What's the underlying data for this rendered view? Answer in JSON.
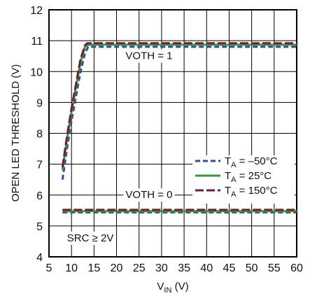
{
  "chart_data": {
    "type": "line",
    "xlabel": "V",
    "xlabel_sub": "IN",
    "xlabel_unit": " (V)",
    "ylabel": "OPEN LED THRESHOLD (V)",
    "xlim": [
      5,
      60
    ],
    "ylim": [
      4,
      12
    ],
    "xticks": [
      5,
      10,
      15,
      20,
      25,
      30,
      35,
      40,
      45,
      50,
      55,
      60
    ],
    "yticks": [
      4,
      5,
      6,
      7,
      8,
      9,
      10,
      11,
      12
    ],
    "grid": true,
    "legend_position": "right-middle",
    "annotations": [
      {
        "text": "VOTH = 1",
        "x": 22,
        "y": 10.4
      },
      {
        "text": "VOTH = 0",
        "x": 22,
        "y": 5.9
      },
      {
        "text": "SRC ≥ 2V",
        "x": 9,
        "y": 4.5
      }
    ],
    "series": [
      {
        "name": "T",
        "name_sub": "A",
        "name_rest": " = –50°C",
        "color": "#2b4f9e",
        "dash": "7,4",
        "curves": [
          {
            "x": [
              8,
              9,
              10,
              11,
              12,
              13,
              13.7,
              15,
              60
            ],
            "y": [
              6.5,
              7.5,
              8.4,
              9.2,
              10.0,
              10.6,
              10.8,
              10.8,
              10.8
            ]
          },
          {
            "x": [
              8,
              60
            ],
            "y": [
              5.44,
              5.44
            ]
          }
        ]
      },
      {
        "name": "T",
        "name_sub": "A",
        "name_rest": " = 25°C",
        "color": "#3a9a3a",
        "dash": "",
        "curves": [
          {
            "x": [
              8,
              9,
              10,
              11,
              12,
              13,
              13.5,
              15,
              60
            ],
            "y": [
              6.8,
              7.8,
              8.7,
              9.5,
              10.3,
              10.8,
              10.87,
              10.87,
              10.87
            ]
          },
          {
            "x": [
              8,
              60
            ],
            "y": [
              5.48,
              5.48
            ]
          }
        ]
      },
      {
        "name": "T",
        "name_sub": "A",
        "name_rest": " = 150°C",
        "color": "#7a1a2a",
        "dash": "12,4",
        "curves": [
          {
            "x": [
              8,
              9,
              10,
              11,
              12,
              13,
              13.5,
              15,
              60
            ],
            "y": [
              6.9,
              7.9,
              8.8,
              9.6,
              10.4,
              10.85,
              10.92,
              10.92,
              10.92
            ]
          },
          {
            "x": [
              8,
              60
            ],
            "y": [
              5.52,
              5.52
            ]
          }
        ]
      }
    ]
  }
}
